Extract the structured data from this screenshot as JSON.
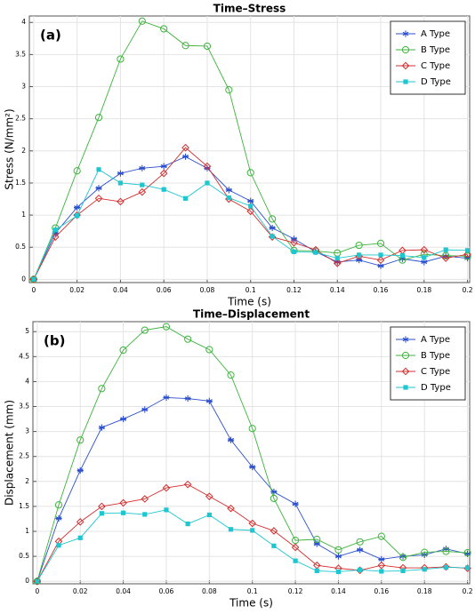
{
  "chart_data": [
    {
      "type": "line",
      "title": "Time–Stress",
      "annotation": "(a)",
      "x_label": "Time (s)",
      "y_label": "Stress (N/mm²)",
      "x": [
        0,
        0.01,
        0.02,
        0.03,
        0.04,
        0.05,
        0.06,
        0.07,
        0.08,
        0.09,
        0.1,
        0.11,
        0.12,
        0.13,
        0.14,
        0.15,
        0.16,
        0.17,
        0.18,
        0.19,
        0.2
      ],
      "series": [
        {
          "name": "A Type",
          "color": "#2b4fcf",
          "marker": "star",
          "values": [
            0,
            0.72,
            1.12,
            1.42,
            1.65,
            1.73,
            1.76,
            1.91,
            1.73,
            1.39,
            1.22,
            0.8,
            0.63,
            0.43,
            0.27,
            0.3,
            0.21,
            0.32,
            0.27,
            0.36,
            0.33
          ]
        },
        {
          "name": "B Type",
          "color": "#3db33d",
          "marker": "circle",
          "values": [
            0,
            0.8,
            1.69,
            2.52,
            3.43,
            4.02,
            3.9,
            3.64,
            3.63,
            2.95,
            1.66,
            0.94,
            0.45,
            0.44,
            0.41,
            0.53,
            0.56,
            0.3,
            0.39,
            0.37,
            0.36
          ]
        },
        {
          "name": "C Type",
          "color": "#d42c2c",
          "marker": "diamond",
          "values": [
            0,
            0.66,
            1.0,
            1.26,
            1.21,
            1.36,
            1.65,
            2.05,
            1.76,
            1.25,
            1.06,
            0.66,
            0.57,
            0.46,
            0.25,
            0.36,
            0.3,
            0.45,
            0.46,
            0.33,
            0.39
          ]
        },
        {
          "name": "D Type",
          "color": "#1ec6cf",
          "marker": "square",
          "values": [
            0,
            0.77,
            0.99,
            1.71,
            1.5,
            1.47,
            1.4,
            1.26,
            1.5,
            1.27,
            1.14,
            0.67,
            0.43,
            0.42,
            0.33,
            0.38,
            0.38,
            0.37,
            0.34,
            0.46,
            0.45
          ]
        }
      ],
      "xlim": [
        -0.002,
        0.201
      ],
      "ylim": [
        -0.05,
        4.1
      ],
      "xticks": [
        0,
        0.02,
        0.04,
        0.06,
        0.08,
        0.1,
        0.12,
        0.14,
        0.16,
        0.18,
        0.2
      ],
      "yticks": [
        0,
        0.5,
        1,
        1.5,
        2,
        2.5,
        3,
        3.5,
        4
      ],
      "grid": true,
      "legend": "upper right"
    },
    {
      "type": "line",
      "title": "Time–Displacement",
      "annotation": "(b)",
      "x_label": "Time (s)",
      "y_label": "Displacement (mm)",
      "x": [
        0,
        0.01,
        0.02,
        0.03,
        0.04,
        0.05,
        0.06,
        0.07,
        0.08,
        0.09,
        0.1,
        0.11,
        0.12,
        0.13,
        0.14,
        0.15,
        0.16,
        0.17,
        0.18,
        0.19,
        0.2
      ],
      "series": [
        {
          "name": "A Type",
          "color": "#2b4fcf",
          "marker": "star",
          "values": [
            0,
            1.26,
            2.22,
            3.08,
            3.25,
            3.44,
            3.68,
            3.66,
            3.61,
            2.83,
            2.29,
            1.79,
            1.55,
            0.75,
            0.5,
            0.63,
            0.44,
            0.5,
            0.53,
            0.65,
            0.55
          ]
        },
        {
          "name": "B Type",
          "color": "#3db33d",
          "marker": "circle",
          "values": [
            0,
            1.53,
            2.83,
            3.86,
            4.63,
            5.03,
            5.1,
            4.85,
            4.64,
            4.13,
            3.06,
            1.66,
            0.82,
            0.84,
            0.63,
            0.79,
            0.9,
            0.48,
            0.58,
            0.6,
            0.57
          ]
        },
        {
          "name": "C Type",
          "color": "#d42c2c",
          "marker": "diamond",
          "values": [
            0,
            0.8,
            1.19,
            1.5,
            1.57,
            1.65,
            1.87,
            1.94,
            1.7,
            1.46,
            1.16,
            1.01,
            0.68,
            0.32,
            0.26,
            0.22,
            0.32,
            0.27,
            0.27,
            0.29,
            0.26
          ]
        },
        {
          "name": "D Type",
          "color": "#1ec6cf",
          "marker": "square",
          "values": [
            0,
            0.72,
            0.87,
            1.36,
            1.37,
            1.34,
            1.43,
            1.15,
            1.33,
            1.04,
            1.02,
            0.71,
            0.41,
            0.21,
            0.19,
            0.23,
            0.2,
            0.21,
            0.24,
            0.28,
            0.27
          ]
        }
      ],
      "xlim": [
        -0.002,
        0.201
      ],
      "ylim": [
        -0.05,
        5.2
      ],
      "xticks": [
        0,
        0.02,
        0.04,
        0.06,
        0.08,
        0.1,
        0.12,
        0.14,
        0.16,
        0.18,
        0.2
      ],
      "yticks": [
        0,
        0.5,
        1,
        1.5,
        2,
        2.5,
        3,
        3.5,
        4,
        4.5,
        5
      ],
      "grid": true,
      "legend": "upper right"
    }
  ]
}
